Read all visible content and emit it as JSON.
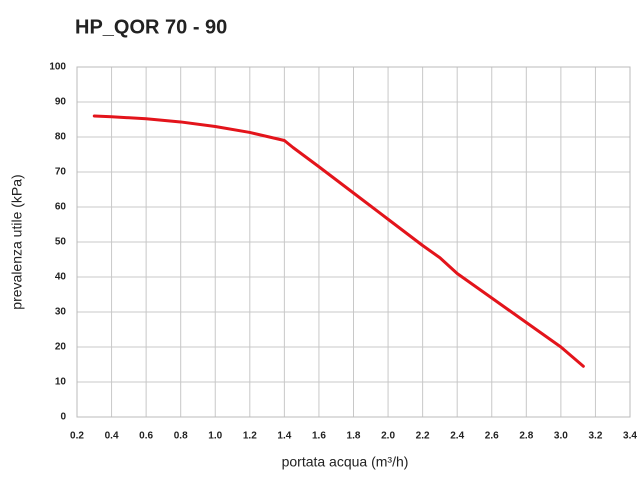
{
  "chart_data": {
    "type": "line",
    "title": "HP_QOR 70 - 90",
    "xlabel": "portata acqua (m³/h)",
    "ylabel": "prevalenza utile (kPa)",
    "xlim": [
      0.2,
      3.4
    ],
    "ylim": [
      0,
      100
    ],
    "xticks": [
      0.2,
      0.4,
      0.6,
      0.8,
      {
        "value": 1,
        "label": "1.0"
      },
      1.2,
      1.4,
      1.6,
      1.8,
      {
        "value": 2,
        "label": "2.0"
      },
      2.2,
      2.4,
      2.6,
      2.8,
      {
        "value": 3,
        "label": "3.0"
      },
      3.2,
      3.4
    ],
    "yticks": [
      0,
      10,
      20,
      30,
      40,
      50,
      60,
      70,
      80,
      90,
      100
    ],
    "grid": true,
    "series": [
      {
        "name": "HP_QOR 70 - 90",
        "color": "#e3141b",
        "x": [
          0.3,
          0.4,
          0.6,
          0.8,
          1.0,
          1.2,
          1.4,
          1.45,
          1.6,
          1.8,
          2.0,
          2.2,
          2.3,
          2.4,
          2.6,
          2.8,
          3.0,
          3.13
        ],
        "values": [
          86,
          85.8,
          85.2,
          84.3,
          83,
          81.3,
          79,
          77,
          71.5,
          64,
          56.5,
          49,
          45.5,
          41,
          34,
          27,
          20,
          14.5
        ]
      }
    ]
  }
}
